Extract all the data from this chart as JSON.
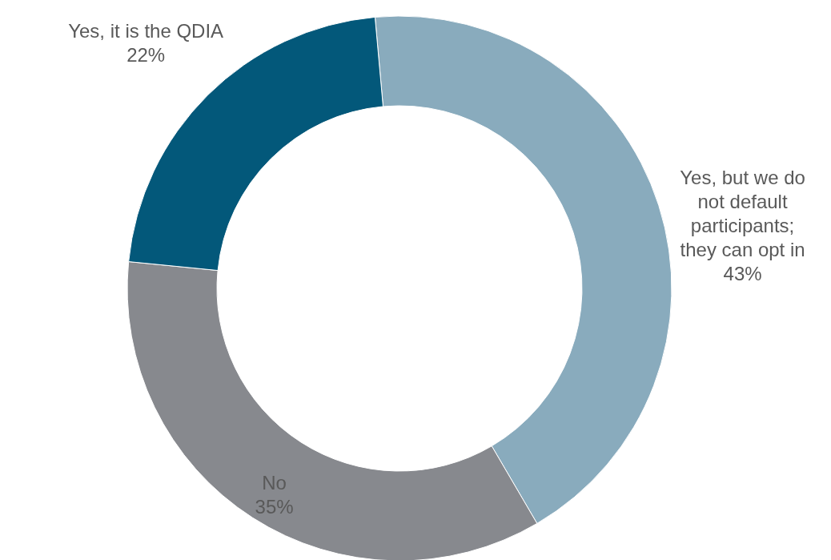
{
  "chart_data": {
    "type": "donut",
    "categories": [
      "Yes, but we do not default participants; they can opt in",
      "No",
      "Yes, it is the QDIA"
    ],
    "values": [
      43,
      35,
      22
    ],
    "colors": [
      "#89abbd",
      "#87898e",
      "#03587a"
    ],
    "value_labels": [
      "43%",
      "35%",
      "22%"
    ],
    "legend": false
  }
}
